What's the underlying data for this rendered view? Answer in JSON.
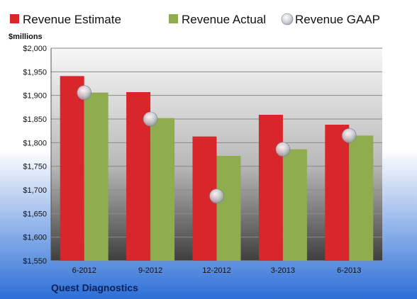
{
  "company": "Quest Diagnostics",
  "chart_data": {
    "type": "bar",
    "title": "",
    "ylabel": "$millions",
    "categories": [
      "6-2012",
      "9-2012",
      "12-2012",
      "3-2013",
      "6-2013"
    ],
    "ylim": [
      1550,
      2000
    ],
    "yticks": [
      1550,
      1600,
      1650,
      1700,
      1750,
      1800,
      1850,
      1900,
      1950,
      2000
    ],
    "ytick_labels": [
      "$1,550",
      "$1,600",
      "$1,650",
      "$1,700",
      "$1,750",
      "$1,800",
      "$1,850",
      "$1,900",
      "$1,950",
      "$2,000"
    ],
    "grid": true,
    "legend_position": "top",
    "series": [
      {
        "name": "Revenue Estimate",
        "kind": "bar",
        "color": "#d9262a",
        "values": [
          1941,
          1907,
          1813,
          1859,
          1838
        ]
      },
      {
        "name": "Revenue Actual",
        "kind": "bar",
        "color": "#8fad4f",
        "values": [
          1906,
          1852,
          1772,
          1786,
          1815
        ]
      },
      {
        "name": "Revenue GAAP",
        "kind": "marker",
        "color": "#b4b8c4",
        "values": [
          1906,
          1850,
          1687,
          1786,
          1815
        ]
      }
    ]
  }
}
